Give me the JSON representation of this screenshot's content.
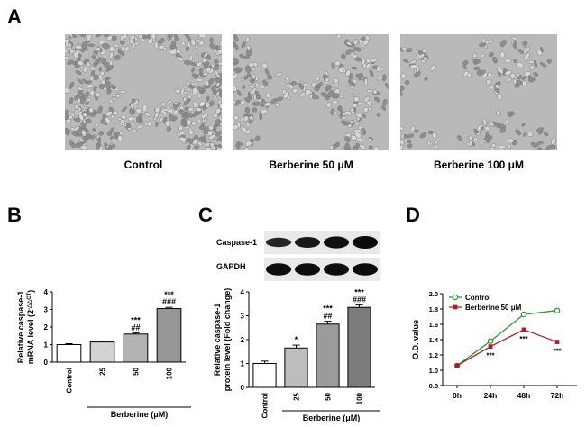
{
  "panel_a": {
    "letter": "A",
    "images": [
      {
        "caption": "Control",
        "density": 0.72
      },
      {
        "caption": "Berberine 50 μM",
        "density": 0.5
      },
      {
        "caption": "Berberine 100 μM",
        "density": 0.36
      }
    ]
  },
  "chart_data": [
    {
      "panel": "B",
      "type": "bar",
      "ylabel_line1": "Relative caspase-1",
      "ylabel_line2_base": "mRNA level (2",
      "ylabel_sup": "-△△CT",
      "ylabel_close": ")",
      "categories": [
        "Control",
        "25",
        "50",
        "100"
      ],
      "values": [
        1.0,
        1.15,
        1.6,
        3.05
      ],
      "errors": [
        0.05,
        0.05,
        0.06,
        0.07
      ],
      "fills": [
        "#ffffff",
        "#d2d2d2",
        "#b2b2b2",
        "#969696"
      ],
      "ylim": [
        0,
        4
      ],
      "yticks": [
        "0",
        "1",
        "2",
        "3",
        "4"
      ],
      "annotations": [
        [],
        [],
        [
          "***",
          "##"
        ],
        [
          "***",
          "###"
        ]
      ],
      "group_label": "Berberine (μM)"
    },
    {
      "panel": "C",
      "type": "bar",
      "ylabel_line1": "Relative caspase-1",
      "ylabel_line2": "protein level (Fold change)",
      "categories": [
        "Control",
        "25",
        "50",
        "100"
      ],
      "values": [
        1.0,
        1.65,
        2.65,
        3.35
      ],
      "errors": [
        0.1,
        0.12,
        0.12,
        0.1
      ],
      "fills": [
        "#ffffff",
        "#bdbdbd",
        "#9b9b9b",
        "#7c7c7c"
      ],
      "ylim": [
        0,
        4
      ],
      "yticks": [
        "0",
        "1",
        "2",
        "3",
        "4"
      ],
      "annotations": [
        [],
        [
          "*"
        ],
        [
          "***",
          "##"
        ],
        [
          "***",
          "###"
        ]
      ],
      "group_label": "Berberine (μM)",
      "blots": [
        {
          "label": "Caspase-1",
          "intensity": [
            0.55,
            0.75,
            0.9,
            1.0
          ]
        },
        {
          "label": "GAPDH",
          "intensity": [
            0.95,
            0.95,
            0.95,
            0.95
          ]
        }
      ]
    },
    {
      "panel": "D",
      "type": "line",
      "ylabel": "O.D. value",
      "x": [
        "0h",
        "24h",
        "48h",
        "72h"
      ],
      "ylim": [
        0.8,
        2.0
      ],
      "yticks": [
        "0.8",
        "1.0",
        "1.2",
        "1.4",
        "1.6",
        "1.8",
        "2.0"
      ],
      "series": [
        {
          "name": "Control",
          "values": [
            1.06,
            1.38,
            1.73,
            1.78
          ],
          "color": "#2a9a2a",
          "marker": "circle"
        },
        {
          "name": "Berberine 50  μM",
          "values": [
            1.06,
            1.31,
            1.53,
            1.37
          ],
          "color": "#b01c2a",
          "marker": "square"
        }
      ],
      "annotations": [
        "",
        "***",
        "***",
        "***"
      ],
      "legend_position": "top-left"
    }
  ]
}
